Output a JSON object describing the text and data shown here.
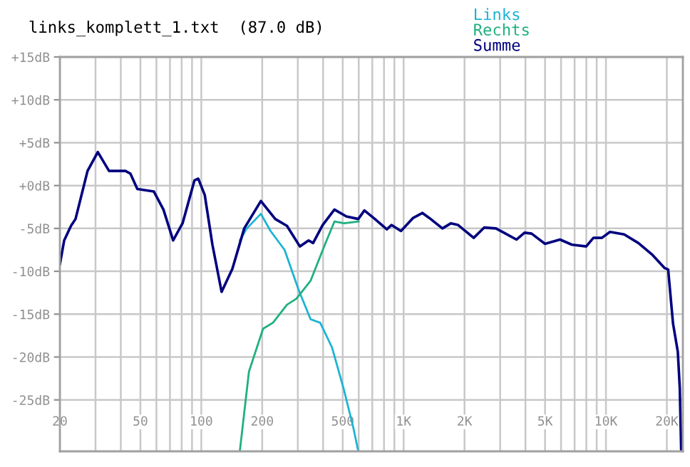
{
  "chart_data": {
    "type": "line",
    "title": "links_komplett_1.txt  (87.0 dB)",
    "log": "x",
    "grid": true,
    "legend": "top right",
    "marker": "none",
    "line_style": "solid",
    "xlim": [
      20,
      24000
    ],
    "ylim": [
      -31,
      15
    ],
    "xticks": [
      20,
      {
        "value": 30,
        "label": null
      },
      {
        "value": 40,
        "label": null
      },
      50,
      {
        "value": 60,
        "label": null
      },
      {
        "value": 70,
        "label": null
      },
      {
        "value": 80,
        "label": null
      },
      {
        "value": 90,
        "label": null
      },
      100,
      200,
      {
        "value": 300,
        "label": null
      },
      {
        "value": 400,
        "label": null
      },
      500,
      {
        "value": 600,
        "label": null
      },
      {
        "value": 700,
        "label": null
      },
      {
        "value": 800,
        "label": null
      },
      {
        "value": 900,
        "label": null
      },
      {
        "value": 1000,
        "label": "1K"
      },
      {
        "value": 2000,
        "label": "2K"
      },
      {
        "value": 3000,
        "label": null
      },
      {
        "value": 4000,
        "label": null
      },
      {
        "value": 5000,
        "label": "5K"
      },
      {
        "value": 6000,
        "label": null
      },
      {
        "value": 7000,
        "label": null
      },
      {
        "value": 8000,
        "label": null
      },
      {
        "value": 9000,
        "label": null
      },
      {
        "value": 10000,
        "label": "10K"
      },
      {
        "value": 20000,
        "label": "20K"
      }
    ],
    "yticks": [
      {
        "value": 15,
        "label": "+15dB"
      },
      {
        "value": 10,
        "label": "+10dB"
      },
      {
        "value": 5,
        "label": "+5dB"
      },
      {
        "value": 0,
        "label": "+0dB"
      },
      {
        "value": -5,
        "label": "-5dB"
      },
      {
        "value": -10,
        "label": "-10dB"
      },
      {
        "value": -15,
        "label": "-15dB"
      },
      {
        "value": -20,
        "label": "-20dB"
      },
      {
        "value": -25,
        "label": "-25dB"
      }
    ],
    "series": [
      {
        "name": "Links",
        "color": "#1cb4d4",
        "x": [
          155,
          168,
          197,
          220,
          258,
          303,
          347,
          387,
          443,
          508,
          565,
          597
        ],
        "values": [
          -6.4,
          -5,
          -3.3,
          -5.3,
          -7.5,
          -12.2,
          -15.6,
          -16,
          -18.9,
          -23.9,
          -28.3,
          -31
        ]
      },
      {
        "name": "Rechts",
        "color": "#20b080",
        "x": [
          155,
          172,
          202,
          226,
          265,
          295,
          347,
          408,
          455,
          508,
          600
        ],
        "values": [
          -31,
          -21.7,
          -16.7,
          -16,
          -13.9,
          -13.2,
          -11.1,
          -6.9,
          -4.2,
          -4.4,
          -4.2
        ]
      },
      {
        "name": "Summe",
        "color": "#00007f",
        "x": [
          20,
          21,
          22.7,
          23.9,
          27.4,
          30.8,
          35,
          42.2,
          44.6,
          48.3,
          58.3,
          65,
          72.6,
          80.8,
          92.5,
          96.6,
          104,
          113.5,
          126,
          142.5,
          163,
          197,
          232,
          265,
          307,
          339,
          357,
          398,
          455,
          521,
          597,
          640,
          721,
          826,
          871,
          970,
          1111,
          1239,
          1343,
          1555,
          1714,
          1859,
          2220,
          2500,
          2860,
          3190,
          3610,
          3960,
          4290,
          5000,
          5930,
          6790,
          7990,
          8670,
          9550,
          10470,
          12300,
          14460,
          17000,
          19450,
          20300,
          21460,
          22660,
          23170,
          23550
        ],
        "values": [
          -9.2,
          -6.4,
          -4.7,
          -3.9,
          1.7,
          3.9,
          1.7,
          1.7,
          1.4,
          -0.4,
          -0.7,
          -2.8,
          -6.4,
          -4.4,
          0.6,
          0.8,
          -1.1,
          -6.9,
          -12.4,
          -9.7,
          -5,
          -1.8,
          -3.9,
          -4.7,
          -7.1,
          -6.4,
          -6.7,
          -4.6,
          -2.8,
          -3.6,
          -3.9,
          -2.9,
          -3.9,
          -5.1,
          -4.6,
          -5.3,
          -3.8,
          -3.2,
          -3.8,
          -5,
          -4.4,
          -4.6,
          -6.1,
          -4.9,
          -5,
          -5.6,
          -6.3,
          -5.5,
          -5.6,
          -6.8,
          -6.3,
          -6.9,
          -7.1,
          -6.1,
          -6.1,
          -5.4,
          -5.7,
          -6.7,
          -8.1,
          -9.6,
          -9.8,
          -16.1,
          -19.4,
          -23.6,
          -31
        ]
      }
    ]
  }
}
